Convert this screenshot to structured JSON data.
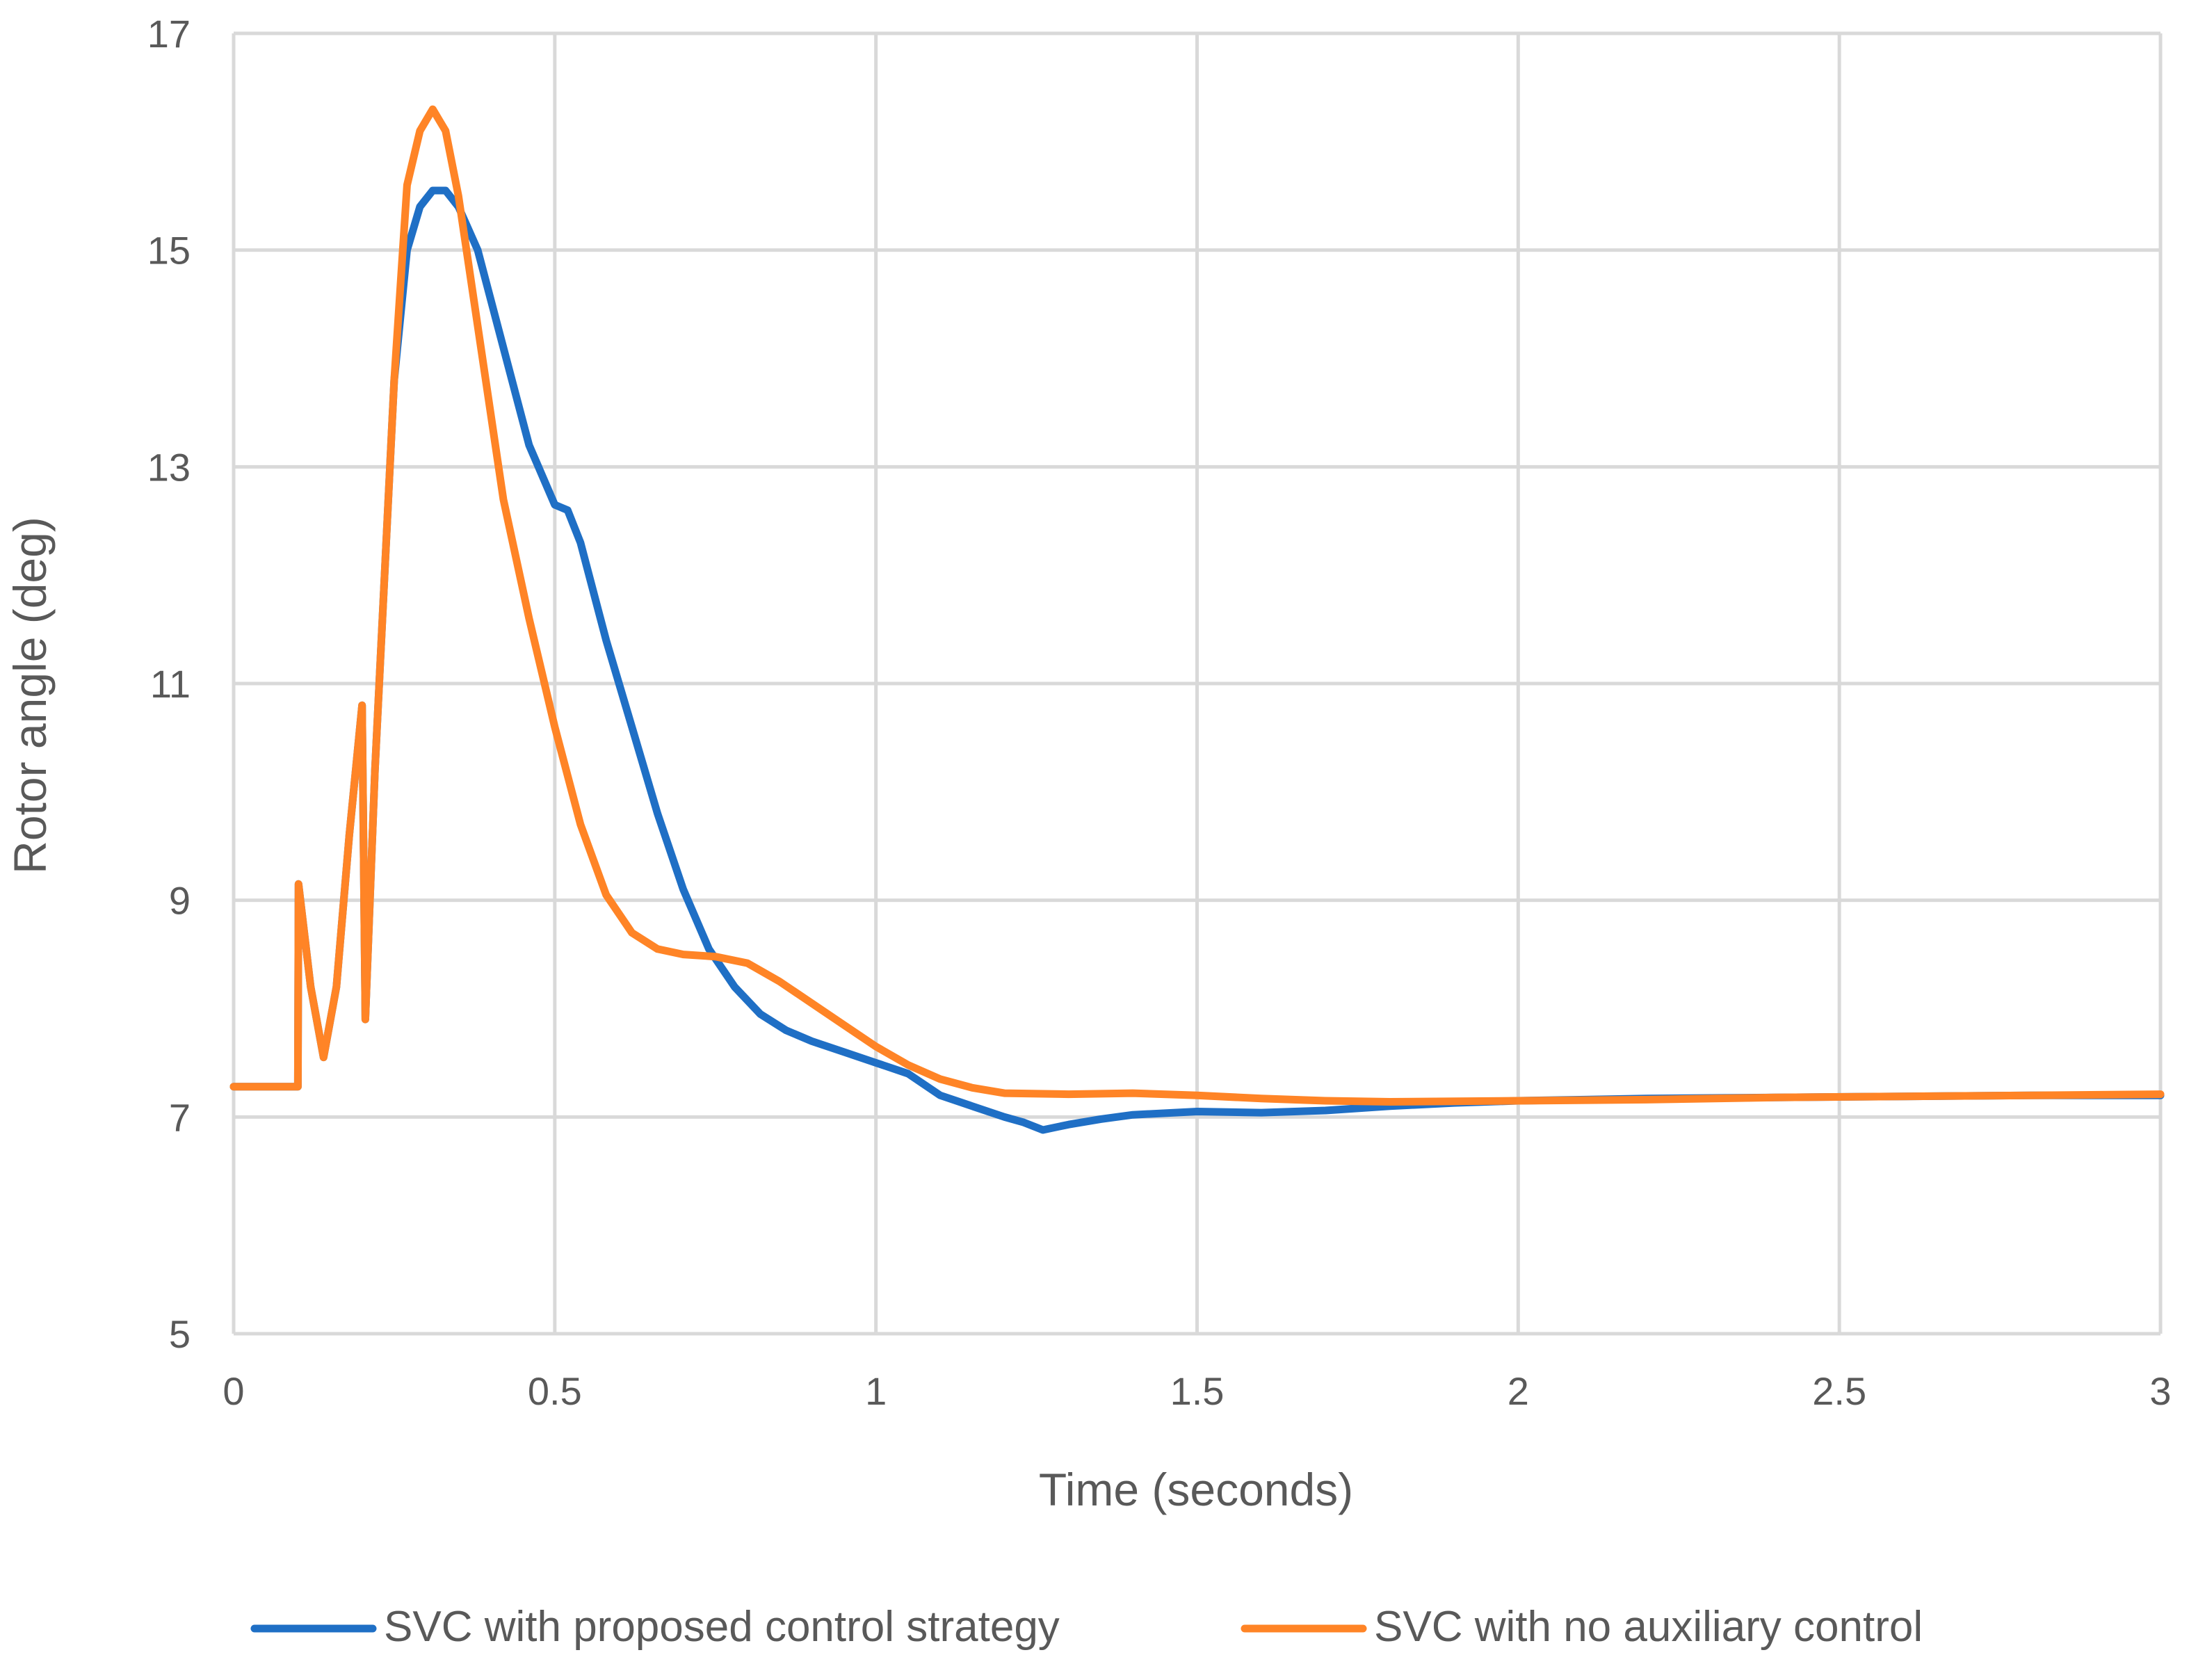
{
  "chart_data": {
    "type": "line",
    "title": "",
    "xlabel": "Time (seconds)",
    "ylabel": "Rotor angle (deg)",
    "xlim": [
      0,
      3
    ],
    "ylim": [
      5,
      17
    ],
    "xticks": [
      0,
      0.5,
      1,
      1.5,
      2,
      2.5,
      3
    ],
    "xtick_labels": [
      "0",
      "0.5",
      "1",
      "1.5",
      "2",
      "2.5",
      "3"
    ],
    "yticks": [
      5,
      7,
      9,
      11,
      13,
      15,
      17
    ],
    "ytick_labels": [
      "5",
      "7",
      "9",
      "11",
      "13",
      "15",
      "17"
    ],
    "grid": true,
    "legend_position": "bottom",
    "series": [
      {
        "name": "SVC with proposed control strategy",
        "color": "#1f6fc5",
        "x": [
          0,
          0.1,
          0.101,
          0.12,
          0.14,
          0.16,
          0.18,
          0.2,
          0.205,
          0.22,
          0.25,
          0.27,
          0.29,
          0.31,
          0.33,
          0.35,
          0.38,
          0.42,
          0.46,
          0.5,
          0.52,
          0.54,
          0.58,
          0.62,
          0.66,
          0.7,
          0.74,
          0.78,
          0.82,
          0.86,
          0.9,
          0.95,
          1.0,
          1.05,
          1.1,
          1.15,
          1.2,
          1.23,
          1.26,
          1.3,
          1.35,
          1.4,
          1.5,
          1.6,
          1.7,
          1.8,
          1.9,
          2.0,
          2.2,
          2.4,
          2.6,
          2.8,
          3.0
        ],
        "y": [
          7.28,
          7.28,
          9.15,
          8.2,
          7.55,
          8.2,
          9.6,
          10.8,
          7.9,
          10.2,
          13.8,
          15.0,
          15.4,
          15.55,
          15.55,
          15.4,
          15.0,
          14.1,
          13.2,
          12.65,
          12.6,
          12.3,
          11.4,
          10.6,
          9.8,
          9.1,
          8.55,
          8.2,
          7.95,
          7.8,
          7.7,
          7.6,
          7.5,
          7.4,
          7.2,
          7.1,
          7.0,
          6.95,
          6.88,
          6.93,
          6.98,
          7.02,
          7.05,
          7.04,
          7.06,
          7.1,
          7.13,
          7.15,
          7.17,
          7.18,
          7.19,
          7.2,
          7.2
        ]
      },
      {
        "name": "SVC with no auxiliary control",
        "color": "#ff8426",
        "x": [
          0,
          0.1,
          0.101,
          0.12,
          0.14,
          0.16,
          0.18,
          0.2,
          0.205,
          0.22,
          0.25,
          0.27,
          0.29,
          0.31,
          0.33,
          0.35,
          0.38,
          0.42,
          0.46,
          0.5,
          0.54,
          0.58,
          0.62,
          0.66,
          0.7,
          0.75,
          0.8,
          0.85,
          0.9,
          0.95,
          1.0,
          1.05,
          1.1,
          1.15,
          1.2,
          1.3,
          1.4,
          1.5,
          1.6,
          1.7,
          1.8,
          2.0,
          2.2,
          2.4,
          2.6,
          2.8,
          3.0
        ],
        "y": [
          7.28,
          7.28,
          9.15,
          8.2,
          7.55,
          8.2,
          9.6,
          10.8,
          7.9,
          10.2,
          13.8,
          15.6,
          16.1,
          16.3,
          16.1,
          15.5,
          14.3,
          12.7,
          11.6,
          10.6,
          9.7,
          9.05,
          8.7,
          8.55,
          8.5,
          8.48,
          8.42,
          8.25,
          8.05,
          7.85,
          7.65,
          7.48,
          7.35,
          7.27,
          7.22,
          7.21,
          7.22,
          7.2,
          7.17,
          7.15,
          7.14,
          7.15,
          7.16,
          7.18,
          7.19,
          7.2,
          7.21
        ]
      }
    ]
  }
}
